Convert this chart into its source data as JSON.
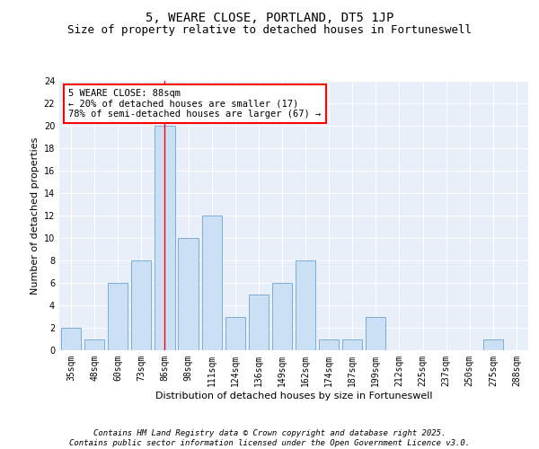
{
  "title": "5, WEARE CLOSE, PORTLAND, DT5 1JP",
  "subtitle": "Size of property relative to detached houses in Fortuneswell",
  "xlabel": "Distribution of detached houses by size in Fortuneswell",
  "ylabel": "Number of detached properties",
  "categories": [
    "35sqm",
    "48sqm",
    "60sqm",
    "73sqm",
    "86sqm",
    "98sqm",
    "111sqm",
    "124sqm",
    "136sqm",
    "149sqm",
    "162sqm",
    "174sqm",
    "187sqm",
    "199sqm",
    "212sqm",
    "225sqm",
    "237sqm",
    "250sqm",
    "275sqm",
    "288sqm"
  ],
  "values": [
    2,
    1,
    6,
    8,
    20,
    10,
    12,
    3,
    5,
    6,
    8,
    1,
    1,
    3,
    0,
    0,
    0,
    0,
    1,
    0
  ],
  "bar_color": "#cce0f5",
  "bar_edge_color": "#7aadd6",
  "vline_x_index": 4,
  "vline_color": "red",
  "ylim": [
    0,
    24
  ],
  "yticks": [
    0,
    2,
    4,
    6,
    8,
    10,
    12,
    14,
    16,
    18,
    20,
    22,
    24
  ],
  "annotation_text": "5 WEARE CLOSE: 88sqm\n← 20% of detached houses are smaller (17)\n78% of semi-detached houses are larger (67) →",
  "annotation_box_color": "white",
  "annotation_box_edge_color": "red",
  "footer_text": "Contains HM Land Registry data © Crown copyright and database right 2025.\nContains public sector information licensed under the Open Government Licence v3.0.",
  "bg_color": "#e8eff8",
  "grid_color": "white",
  "title_fontsize": 10,
  "subtitle_fontsize": 9,
  "ylabel_fontsize": 8,
  "xlabel_fontsize": 8,
  "tick_fontsize": 7,
  "annotation_fontsize": 7.5,
  "footer_fontsize": 6.5
}
